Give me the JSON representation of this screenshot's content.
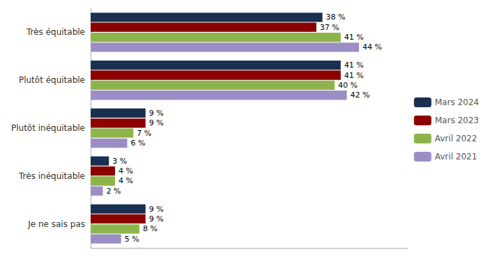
{
  "chart_data": {
    "type": "bar",
    "orientation": "horizontal",
    "categories": [
      "Très équitable",
      "Plutôt équitable",
      "Plutôt inéquitable",
      "Très inéquitable",
      "Je ne sais pas"
    ],
    "series": [
      {
        "name": "Mars 2024",
        "color": "#1a3050",
        "values": [
          38,
          41,
          9,
          3,
          9
        ],
        "value_labels": [
          "38 %",
          "41 %",
          "9 %",
          "3 %",
          "9 %"
        ]
      },
      {
        "name": "Mars 2023",
        "color": "#8b0000",
        "values": [
          37,
          41,
          9,
          4,
          9
        ],
        "value_labels": [
          "37 %",
          "41 %",
          "9 %",
          "4 %",
          "9 %"
        ]
      },
      {
        "name": "Avril 2022",
        "color": "#8db44a",
        "values": [
          41,
          40,
          7,
          4,
          8
        ],
        "value_labels": [
          "41 %",
          "40 %",
          "7 %",
          "4 %",
          "8 %"
        ]
      },
      {
        "name": "Avril 2021",
        "color": "#9b8ec4",
        "values": [
          44,
          42,
          6,
          2,
          5
        ],
        "value_labels": [
          "44 %",
          "42 %",
          "6 %",
          "2 %",
          "5 %"
        ]
      }
    ],
    "xlim": [
      0,
      52
    ],
    "tick_labels": "y",
    "grid": false,
    "legend": "right",
    "data_labels": true
  }
}
